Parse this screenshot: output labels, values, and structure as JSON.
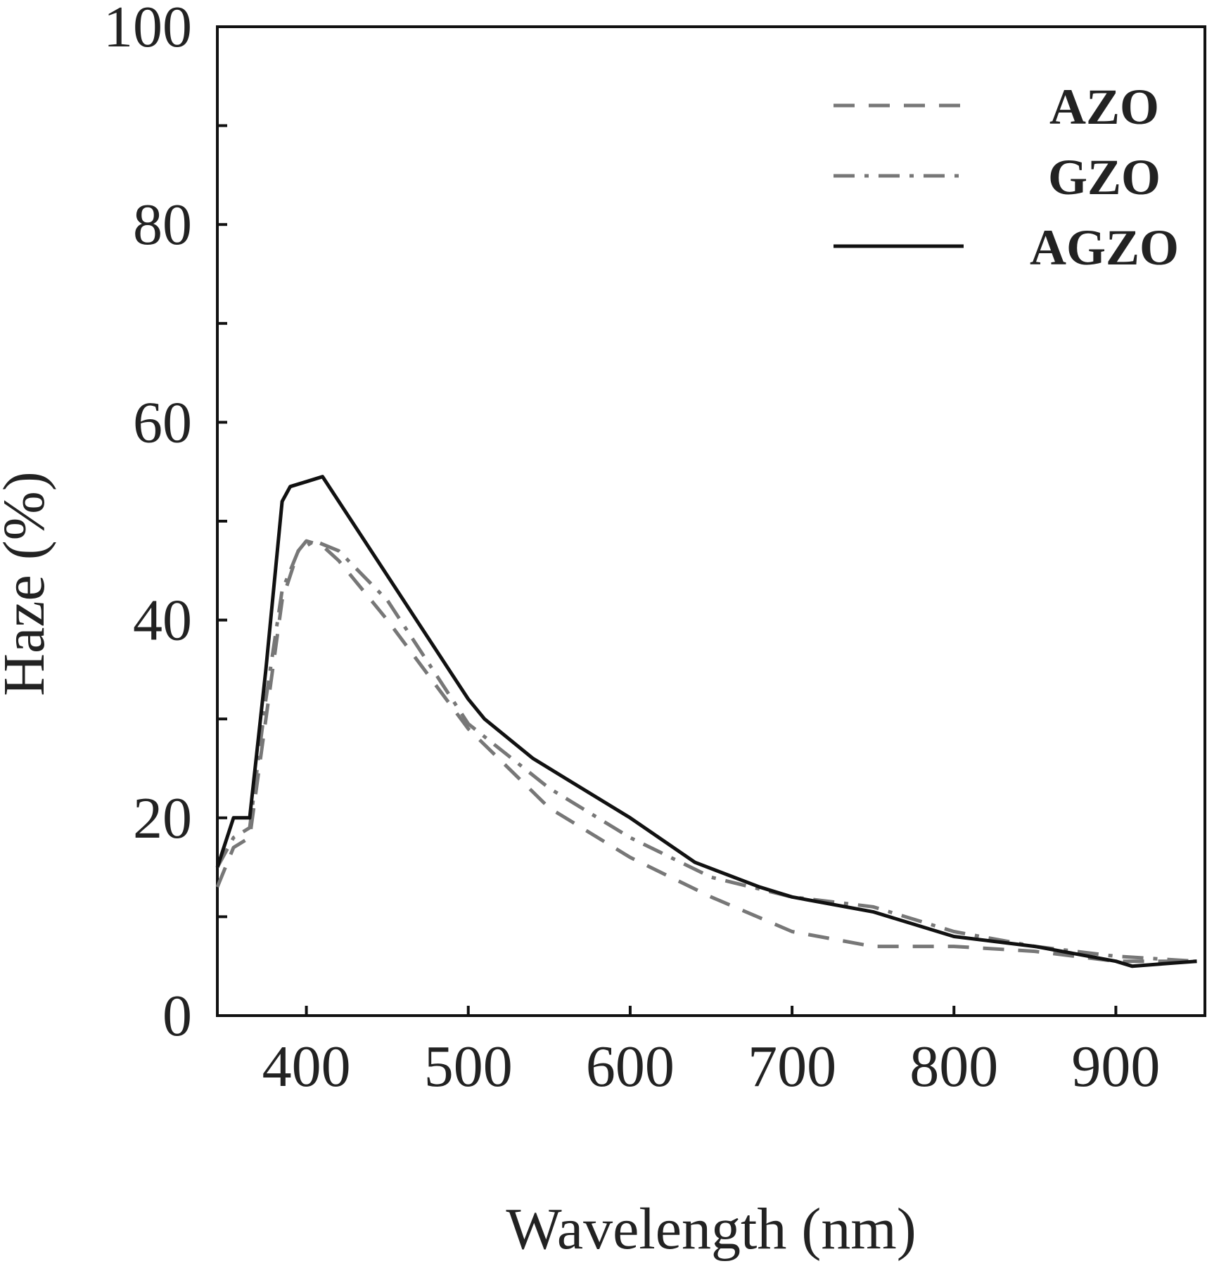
{
  "chart_data": {
    "type": "line",
    "title": "",
    "xlabel": "Wavelength (nm)",
    "ylabel": "Haze (%)",
    "xlim": [
      345,
      955
    ],
    "ylim": [
      0,
      100
    ],
    "xticks": [
      400,
      500,
      600,
      700,
      800,
      900
    ],
    "yticks": [
      0,
      20,
      40,
      60,
      80,
      100
    ],
    "grid": false,
    "legend_position": "top-right",
    "series": [
      {
        "name": "AZO",
        "style": "dashed",
        "color": "#777777",
        "x": [
          345,
          355,
          365,
          375,
          385,
          395,
          400,
          410,
          420,
          450,
          500,
          550,
          600,
          650,
          700,
          750,
          780,
          800,
          850,
          900,
          950
        ],
        "y": [
          13,
          17,
          18,
          30,
          42,
          47,
          48,
          47.5,
          46,
          40,
          29,
          21,
          16,
          12,
          8.5,
          7,
          7,
          7,
          6.5,
          5.5,
          5.5
        ]
      },
      {
        "name": "GZO",
        "style": "dash-dot",
        "color": "#777777",
        "x": [
          345,
          355,
          365,
          375,
          385,
          395,
          405,
          420,
          450,
          500,
          550,
          600,
          650,
          700,
          750,
          800,
          850,
          900,
          950
        ],
        "y": [
          15,
          18,
          19,
          32,
          43,
          47,
          48,
          47,
          42,
          29.5,
          23,
          18,
          14,
          12,
          11,
          8.5,
          7,
          6,
          5.5
        ]
      },
      {
        "name": "AGZO",
        "style": "solid",
        "color": "#111111",
        "x": [
          345,
          355,
          365,
          375,
          385,
          390,
          400,
          410,
          420,
          440,
          460,
          480,
          500,
          510,
          540,
          560,
          600,
          640,
          680,
          700,
          750,
          800,
          850,
          900,
          910,
          950
        ],
        "y": [
          15,
          20,
          20,
          35,
          52,
          53.5,
          54,
          54.5,
          52,
          47,
          42,
          37,
          32,
          30,
          26,
          24,
          20,
          15.5,
          13,
          12,
          10.5,
          8,
          7,
          5.5,
          5,
          5.5
        ]
      }
    ]
  }
}
